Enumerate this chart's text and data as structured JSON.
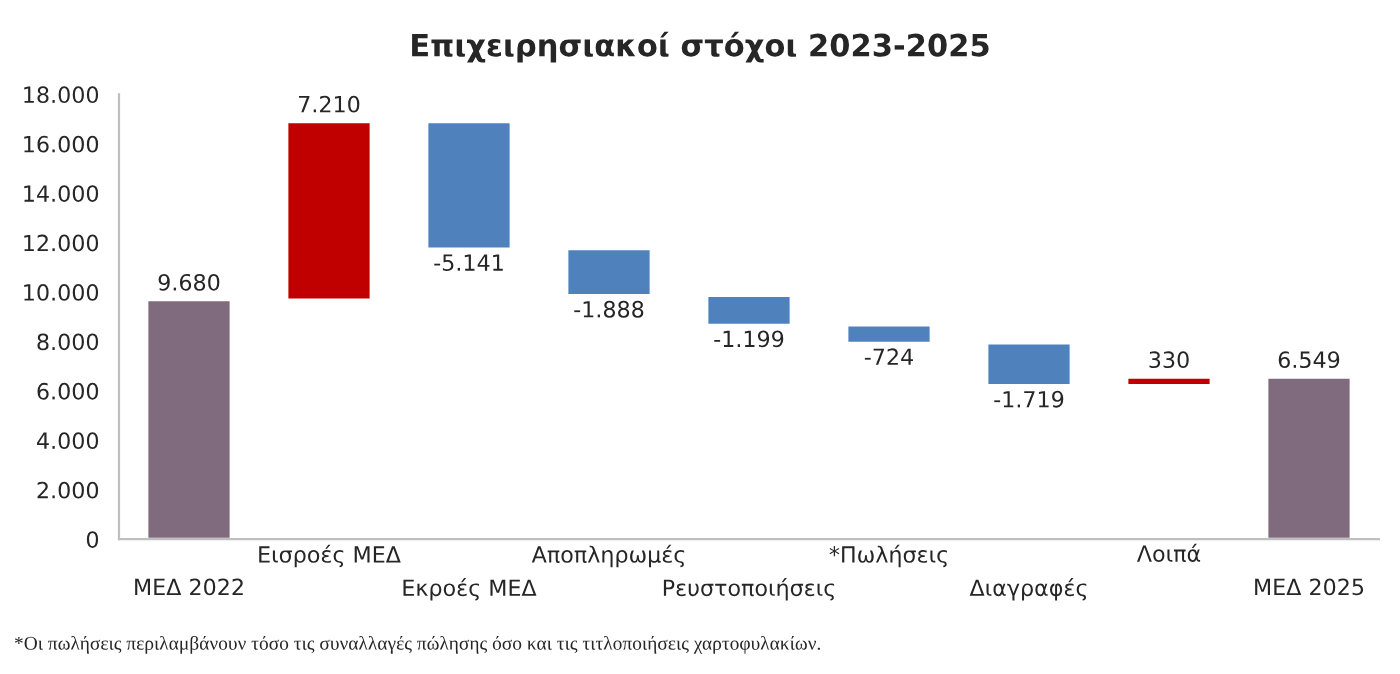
{
  "chart_data": {
    "type": "bar",
    "title": "Επιχειρησιακοί στόχοι 2023-2025",
    "categories": [
      "ΜΕΔ 2022",
      "Εισροές ΜΕΔ",
      "Εκροές ΜΕΔ",
      "Αποπληρωμές",
      "Ρευστοποιήσεις",
      "*Πωλήσεις",
      "Διαγραφές",
      "Λοιπά",
      "ΜΕΔ 2025"
    ],
    "values": [
      9680,
      7210,
      -5141,
      -1888,
      -1199,
      -724,
      -1719,
      330,
      6549
    ],
    "base": [
      0,
      9680,
      16890,
      11749,
      9861,
      8662,
      7938,
      6219,
      0
    ],
    "colors": [
      "#7f6a7e",
      "#c00000",
      "#4f81bd",
      "#4f81bd",
      "#4f81bd",
      "#4f81bd",
      "#4f81bd",
      "#c00000",
      "#7f6a7e"
    ],
    "value_labels": [
      "9.680",
      "7.210",
      "-5.141",
      "-1.888",
      "-1.199",
      "-724",
      "-1.719",
      "330",
      "6.549"
    ],
    "ylim": [
      0,
      18000
    ],
    "yticks": [
      {
        "value": 0,
        "label": "0"
      },
      {
        "value": 2000,
        "label": "2.000"
      },
      {
        "value": 4000,
        "label": "4.000"
      },
      {
        "value": 6000,
        "label": "6.000"
      },
      {
        "value": 8000,
        "label": "8.000"
      },
      {
        "value": 10000,
        "label": "10.000"
      },
      {
        "value": 12000,
        "label": "12.000"
      },
      {
        "value": 14000,
        "label": "14.000"
      },
      {
        "value": 16000,
        "label": "16.000"
      },
      {
        "value": 18000,
        "label": "18.000"
      }
    ],
    "grid": false,
    "legend": false,
    "annotations": [
      "*Οι πωλήσεις περιλαμβάνουν τόσο τις συναλλαγές πώλησης όσο και τις τιτλοποιήσεις χαρτοφυλακίων."
    ]
  }
}
